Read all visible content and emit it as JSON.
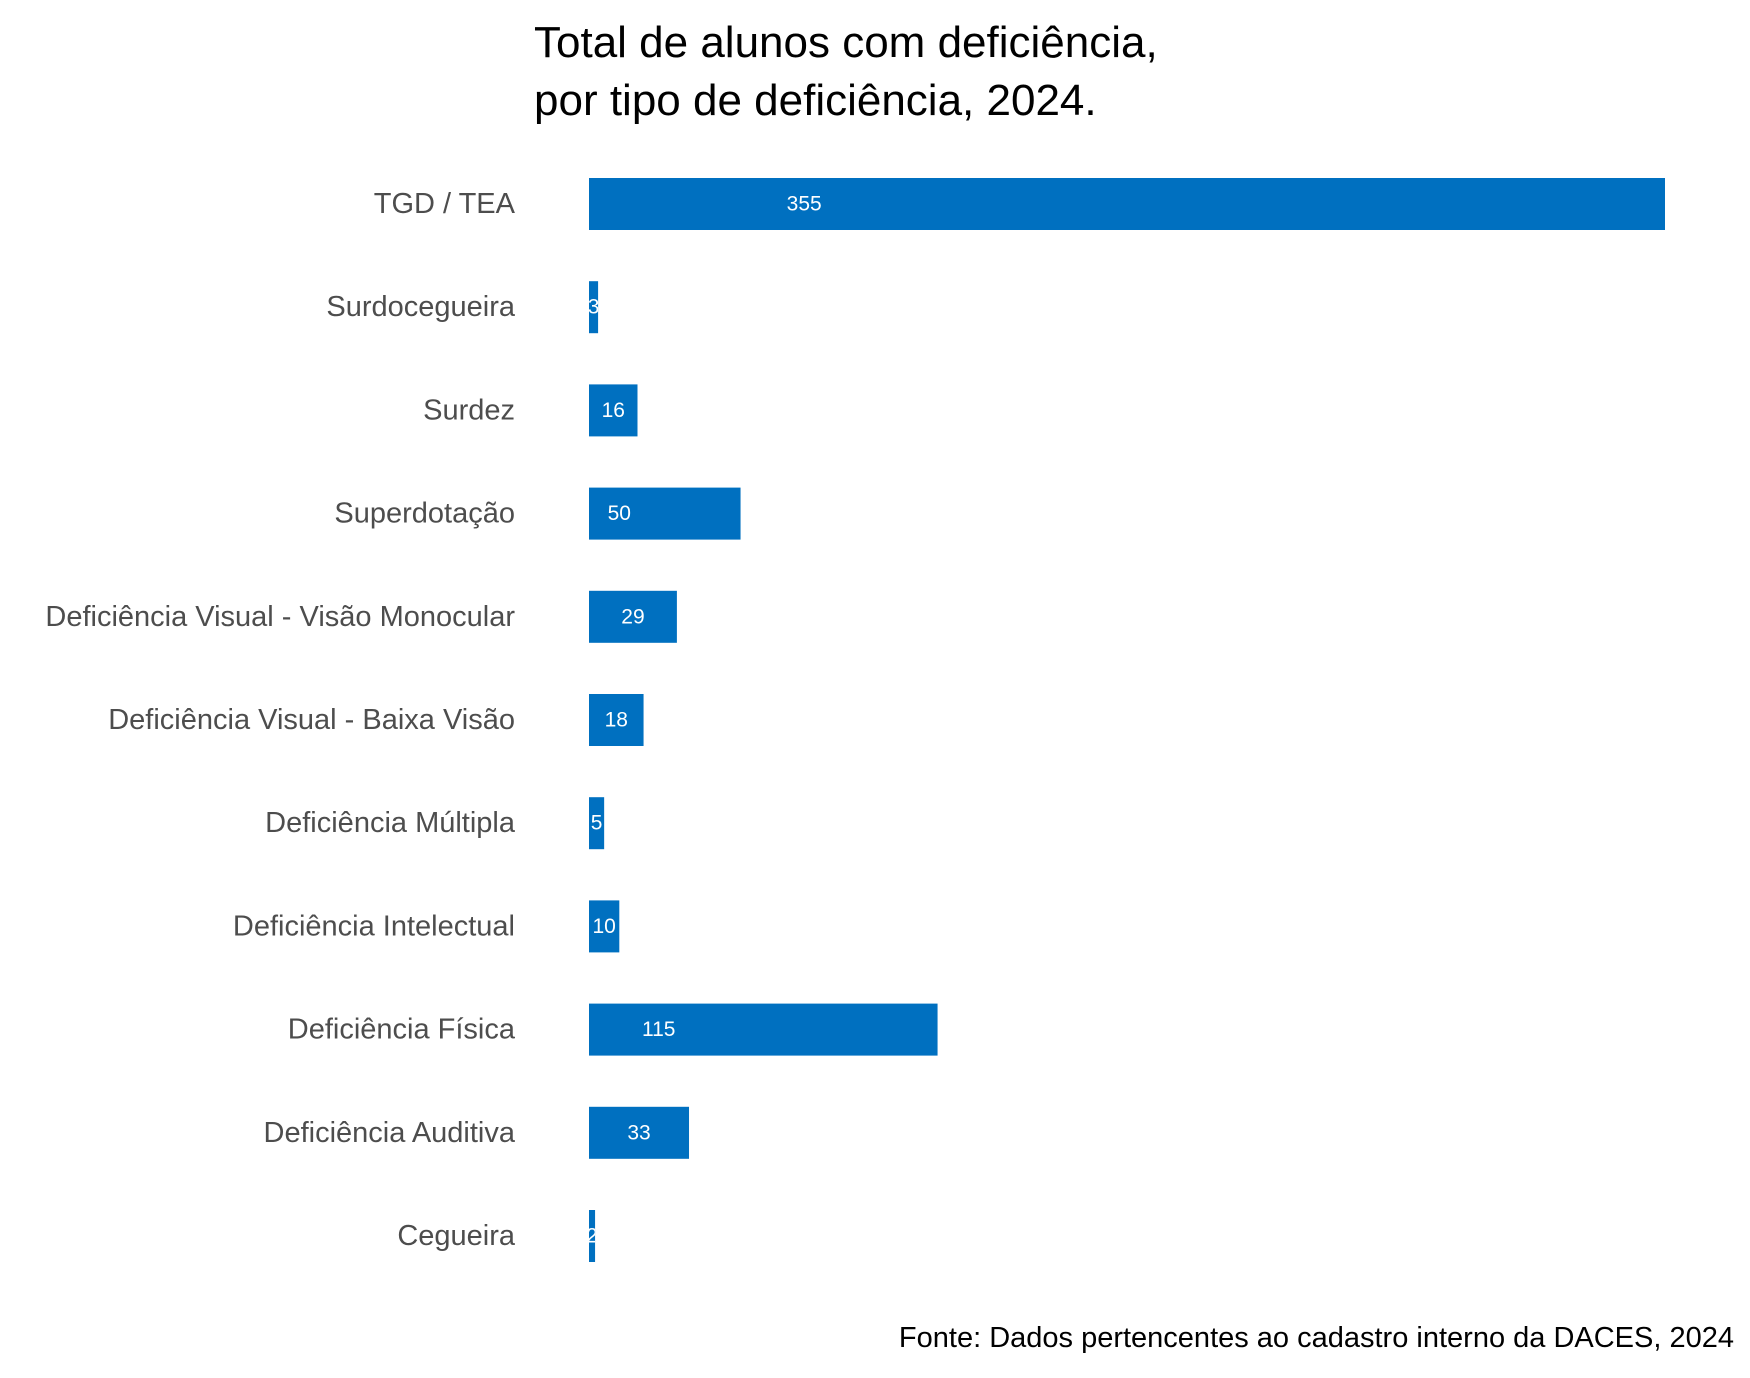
{
  "chart_data": {
    "type": "bar",
    "orientation": "horizontal",
    "title": [
      "Total de alunos com deficiência,",
      "por tipo de deficiência, 2024."
    ],
    "caption": "Fonte: Dados pertencentes ao cadastro interno da DACES, 2024",
    "categories": [
      "TGD / TEA",
      "Surdocegueira",
      "Surdez",
      "Superdotação",
      "Deficiência Visual - Visão Monocular",
      "Deficiência Visual - Baixa Visão",
      "Deficiência Múltipla",
      "Deficiência Intelectual",
      "Deficiência Física",
      "Deficiência Auditiva",
      "Cegueira"
    ],
    "values": [
      355,
      3,
      16,
      50,
      29,
      18,
      5,
      10,
      115,
      33,
      2
    ],
    "xlim": [
      0,
      355
    ],
    "grid": false,
    "legend": "none",
    "bar_color": "#0070C0",
    "value_label_color": "#ffffff",
    "category_label_color": "#4d4d4d"
  }
}
